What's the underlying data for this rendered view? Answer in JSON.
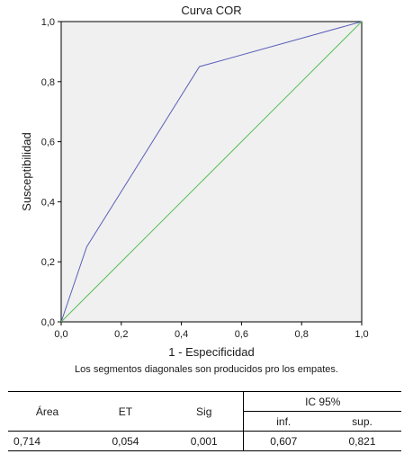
{
  "chart_data": {
    "type": "line",
    "title": "Curva COR",
    "xlabel": "1 - Especificidad",
    "ylabel": "Susceptibilidad",
    "xlim": [
      0.0,
      1.0
    ],
    "ylim": [
      0.0,
      1.0
    ],
    "xticks": [
      "0,0",
      "0,2",
      "0,4",
      "0,6",
      "0,8",
      "1,0"
    ],
    "yticks": [
      "0,0",
      "0,2",
      "0,4",
      "0,6",
      "0,8",
      "1,0"
    ],
    "series": [
      {
        "color": "#5a5fb8",
        "x": [
          0.0,
          0.085,
          0.46,
          1.0
        ],
        "y": [
          0.0,
          0.25,
          0.85,
          1.0
        ]
      },
      {
        "color": "#5bbf5b",
        "x": [
          0.0,
          1.0
        ],
        "y": [
          0.0,
          1.0
        ]
      }
    ],
    "background": "#f0f0f0",
    "grid": false
  },
  "caption": "Los segmentos diagonales son producidos pro los empates.",
  "table": {
    "headers": {
      "area": "Área",
      "et": "ET",
      "sig": "Sig",
      "ic": "IC 95%",
      "inf": "inf.",
      "sup": "sup."
    },
    "row": [
      "0,714",
      "0,054",
      "0,001",
      "0,607",
      "0,821"
    ]
  }
}
